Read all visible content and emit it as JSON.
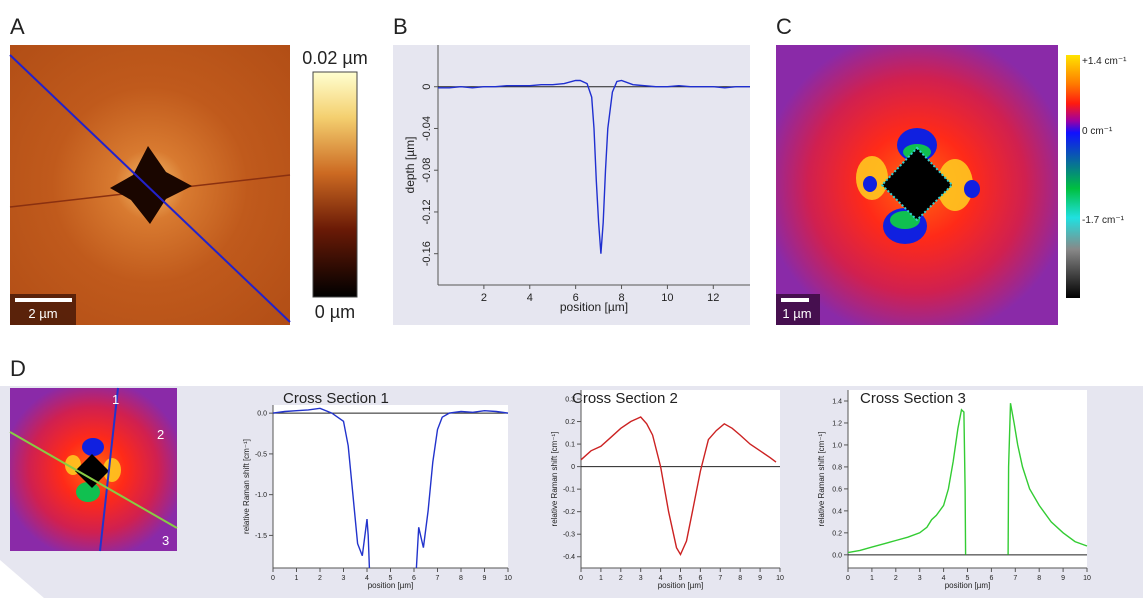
{
  "figure": {
    "panel_labels": [
      "A",
      "B",
      "C",
      "D"
    ],
    "panel_a": {
      "scale_bar": "2 µm",
      "colorbar_top": "0.02 µm",
      "colorbar_bottom": "0 µm"
    },
    "panel_c": {
      "scale_bar": "1 µm",
      "colorbar_labels": [
        "+1.4 cm⁻¹",
        "0 cm⁻¹",
        "-1.7 cm⁻¹"
      ]
    },
    "panel_d": {
      "line_labels": [
        "1",
        "2",
        "3"
      ]
    }
  },
  "chart_data": [
    {
      "type": "line",
      "x_label": "position [µm]",
      "y_label": "depth [µm]",
      "x": [
        0,
        0.5,
        1,
        1.5,
        2,
        2.5,
        3,
        3.5,
        4,
        4.5,
        5,
        5.5,
        6,
        6.2,
        6.5,
        6.7,
        6.8,
        6.9,
        7.0,
        7.1,
        7.2,
        7.3,
        7.4,
        7.6,
        7.8,
        8.0,
        8.5,
        9,
        9.5,
        10,
        10.5,
        11,
        11.5,
        12,
        12.5,
        13,
        13.6
      ],
      "values": [
        -0.001,
        -0.001,
        0,
        -0.001,
        0,
        0,
        0.001,
        0.001,
        0.001,
        0.002,
        0.002,
        0.003,
        0.006,
        0.006,
        0.003,
        -0.01,
        -0.04,
        -0.09,
        -0.13,
        -0.16,
        -0.13,
        -0.08,
        -0.04,
        -0.005,
        0.005,
        0.006,
        0.002,
        0.001,
        0,
        0,
        0.001,
        0,
        0,
        0,
        -0.001,
        0,
        0
      ],
      "color": "#1f2fd0",
      "hline": 0,
      "xlim": [
        0,
        13.6
      ],
      "ylim": [
        -0.19,
        0.04
      ],
      "xticks": [
        2,
        4,
        6,
        8,
        10,
        12
      ],
      "yticks": [
        0,
        -0.04,
        -0.08,
        -0.12,
        -0.16
      ]
    },
    {
      "type": "line",
      "title": "Cross Section 1",
      "x_label": "position [µm]",
      "y_label": "relative Raman shift [cm⁻¹]",
      "x": [
        0,
        0.5,
        1,
        1.5,
        2,
        2.5,
        3,
        3.2,
        3.4,
        3.6,
        3.8,
        4.0,
        4.05,
        4.1,
        5.0,
        6.1,
        6.2,
        6.4,
        6.6,
        6.8,
        7,
        7.2,
        7.5,
        8,
        8.5,
        9,
        9.5,
        10
      ],
      "values": [
        0,
        0.02,
        0.03,
        0.04,
        0.06,
        0.0,
        -0.1,
        -0.4,
        -1.0,
        -1.6,
        -1.75,
        -1.3,
        -1.5,
        -1.9,
        null,
        -1.9,
        -1.4,
        -1.65,
        -1.2,
        -0.6,
        -0.2,
        -0.05,
        0,
        0.02,
        0.01,
        0.03,
        0.02,
        0.0
      ],
      "color": "#2233cc",
      "hline": 0,
      "xlim": [
        0,
        10
      ],
      "ylim": [
        -1.9,
        0.1
      ],
      "xticks": [
        0,
        1,
        2,
        3,
        4,
        5,
        6,
        7,
        8,
        9,
        10
      ],
      "yticks": [
        {
          "value": 0,
          "label": "0.0"
        },
        -0.5,
        {
          "value": -1,
          "label": "-1.0"
        },
        -1.5
      ]
    },
    {
      "type": "line",
      "title": "Cross Section 2",
      "x_label": "position [µm]",
      "y_label": "relative Raman shift [cm⁻¹]",
      "x": [
        0,
        0.5,
        1,
        1.5,
        2,
        2.5,
        3,
        3.3,
        3.6,
        4,
        4.4,
        4.8,
        5,
        5.3,
        5.6,
        6,
        6.4,
        6.8,
        7.2,
        7.6,
        8,
        8.5,
        9,
        9.5,
        9.8
      ],
      "values": [
        0.03,
        0.07,
        0.09,
        0.13,
        0.17,
        0.2,
        0.22,
        0.19,
        0.14,
        0.0,
        -0.2,
        -0.36,
        -0.39,
        -0.33,
        -0.2,
        -0.02,
        0.12,
        0.16,
        0.19,
        0.17,
        0.14,
        0.1,
        0.07,
        0.04,
        0.02
      ],
      "color": "#cc2222",
      "hline": 0,
      "xlim": [
        0,
        10
      ],
      "ylim": [
        -0.45,
        0.34
      ],
      "xticks": [
        0,
        1,
        2,
        3,
        4,
        5,
        6,
        7,
        8,
        9,
        10
      ],
      "yticks": [
        0.3,
        0.2,
        0.1,
        0,
        -0.1,
        -0.2,
        -0.3,
        -0.4
      ]
    },
    {
      "type": "line",
      "title": "Cross Section 3",
      "x_label": "position [µm]",
      "y_label": "relative Raman shift [cm⁻¹]",
      "x": [
        0,
        0.5,
        1,
        1.5,
        2,
        2.5,
        3,
        3.3,
        3.5,
        3.7,
        4,
        4.2,
        4.4,
        4.6,
        4.75,
        4.85,
        4.9,
        4.92,
        5.8,
        6.7,
        6.72,
        6.8,
        6.95,
        7.1,
        7.3,
        7.6,
        8,
        8.5,
        9,
        9.5,
        10
      ],
      "values": [
        0.02,
        0.04,
        0.07,
        0.1,
        0.13,
        0.16,
        0.2,
        0.25,
        0.32,
        0.36,
        0.45,
        0.6,
        0.85,
        1.15,
        1.32,
        1.3,
        0.6,
        0.0,
        null,
        0.0,
        0.8,
        1.38,
        1.2,
        1.0,
        0.8,
        0.6,
        0.45,
        0.3,
        0.2,
        0.12,
        0.08
      ],
      "color": "#33cc33",
      "hline": 0,
      "xlim": [
        0,
        10
      ],
      "ylim": [
        -0.12,
        1.5
      ],
      "xticks": [
        0,
        1,
        2,
        3,
        4,
        5,
        6,
        7,
        8,
        9,
        10
      ],
      "yticks": [
        {
          "value": 0,
          "label": "0.0"
        },
        0.2,
        0.4,
        0.6,
        0.8,
        {
          "value": 1,
          "label": "1.0"
        },
        1.2,
        1.4
      ]
    }
  ]
}
